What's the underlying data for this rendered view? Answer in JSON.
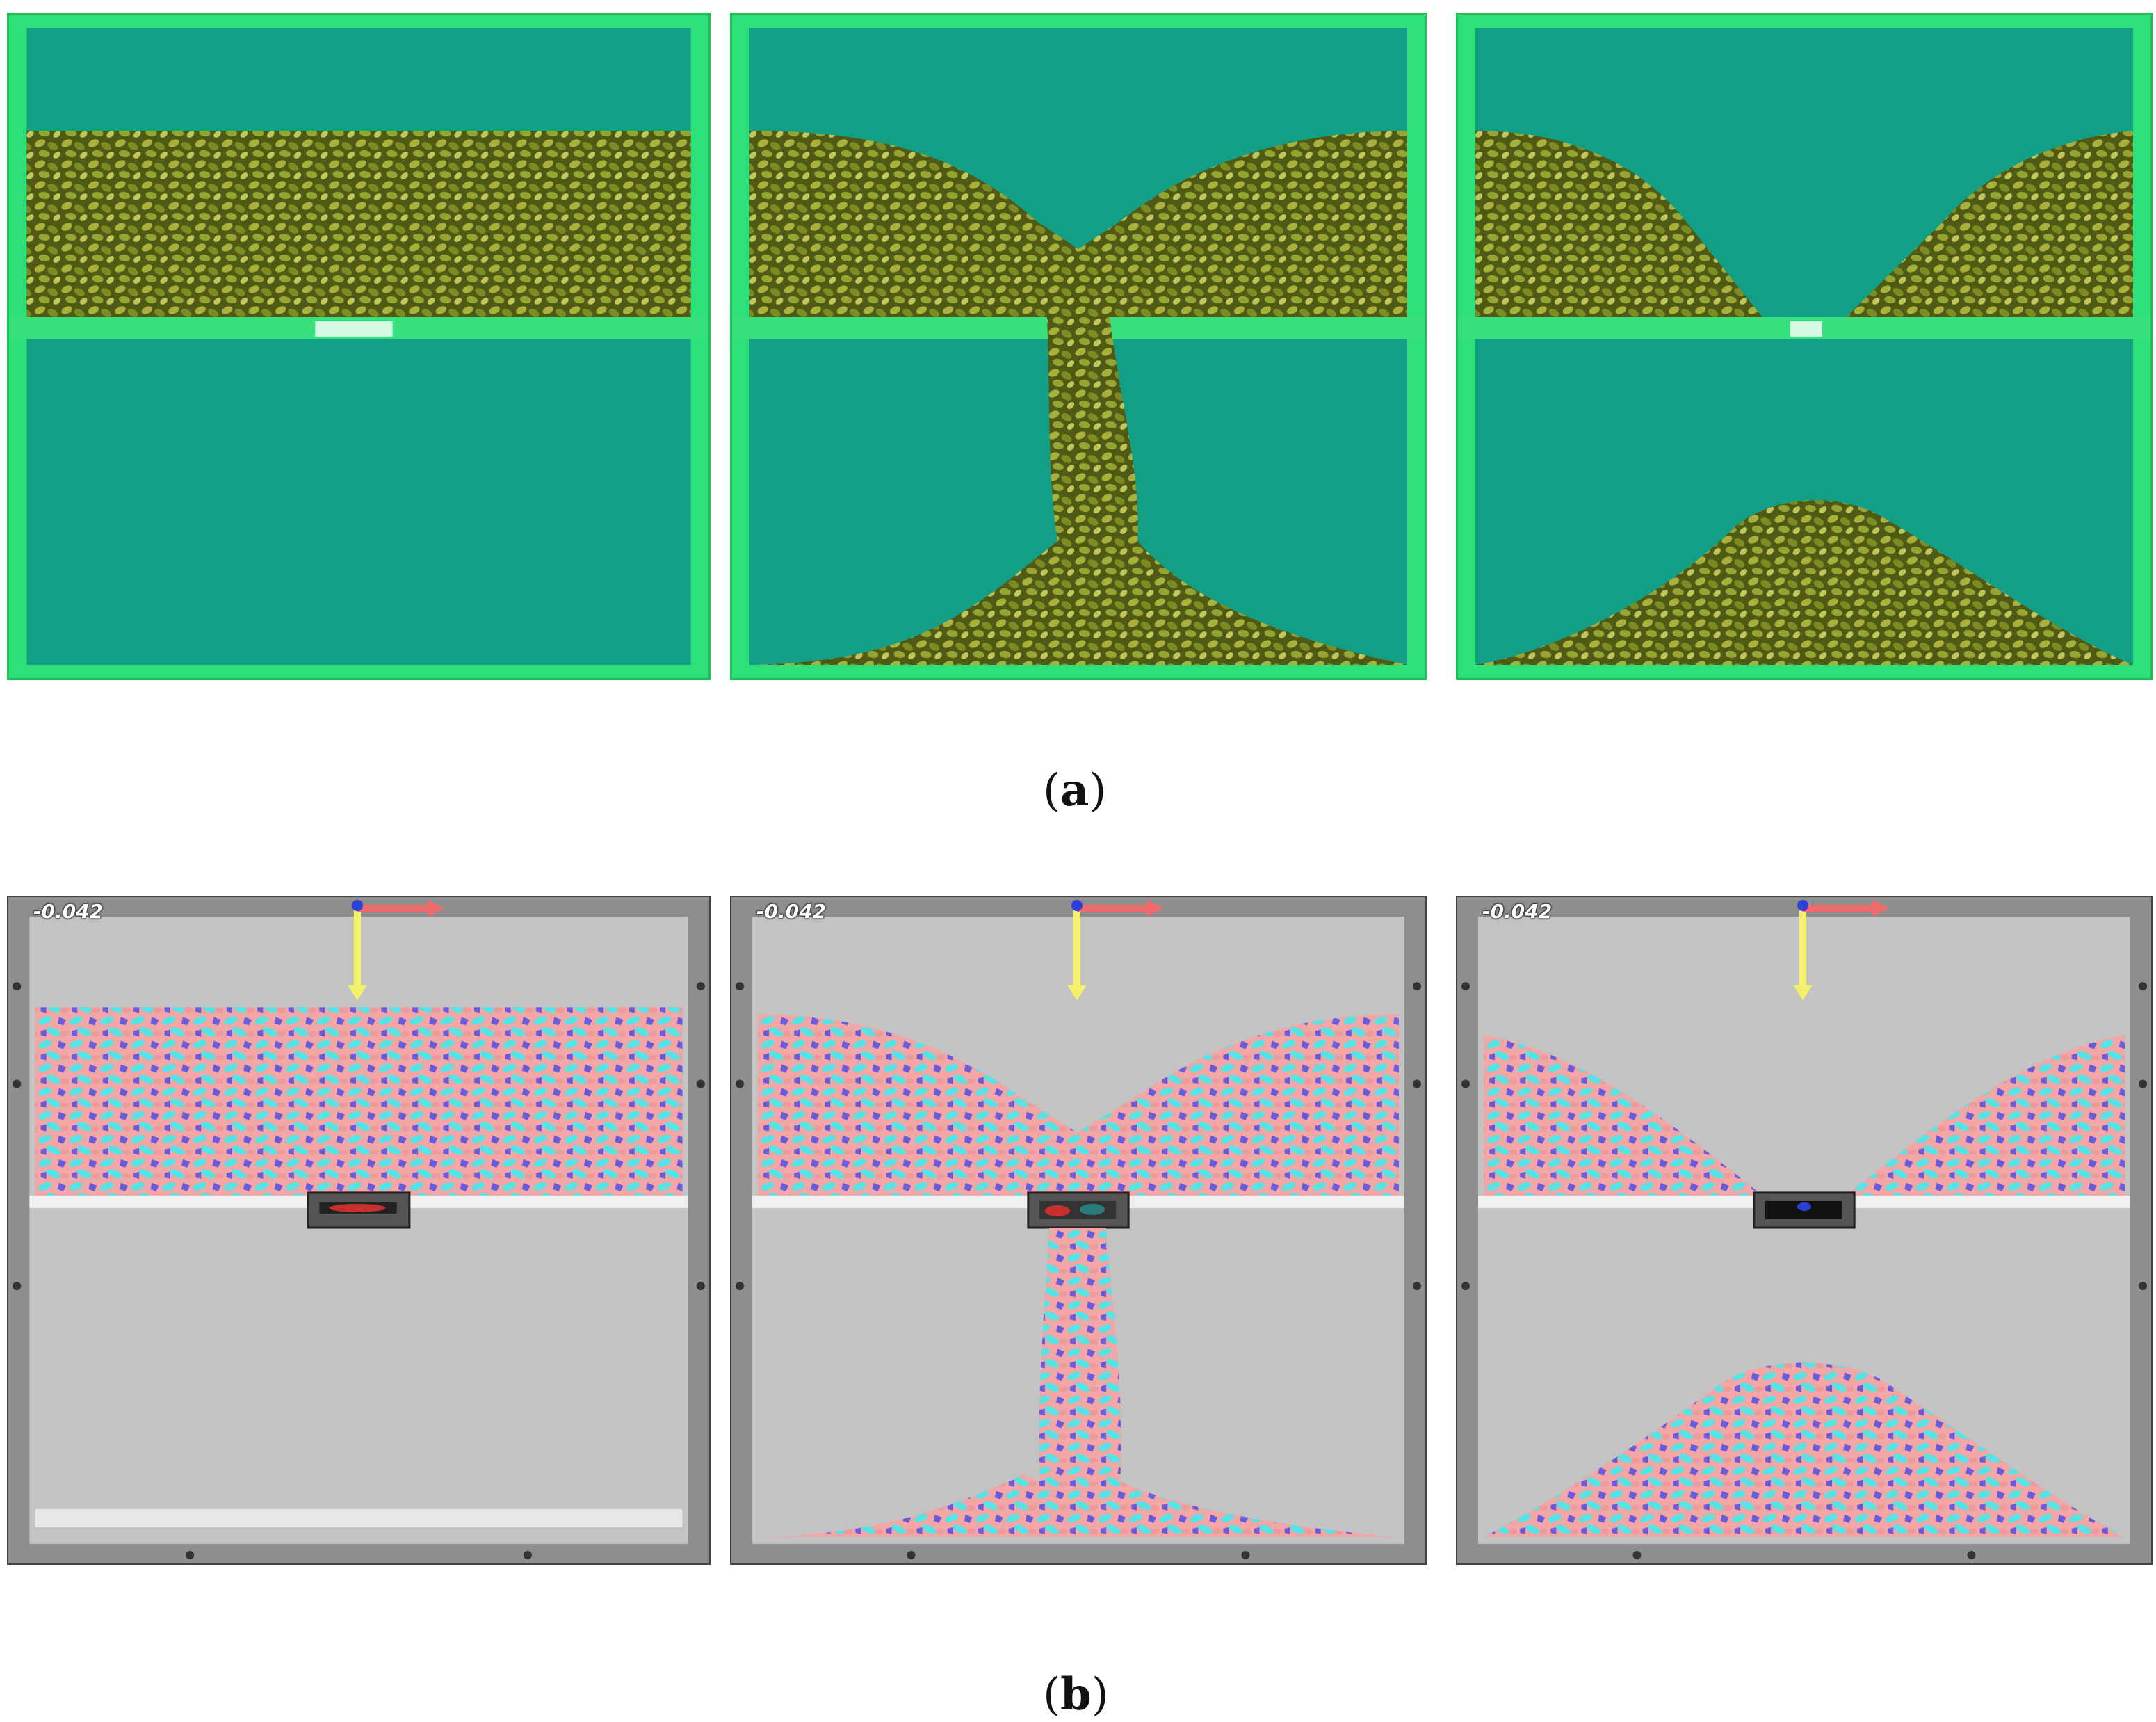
{
  "figure": {
    "subfigure_a": {
      "label_open": "(",
      "label_letter": "a",
      "label_close": ")"
    },
    "subfigure_b": {
      "label_open": "(",
      "label_letter": "b",
      "label_close": ")",
      "scale_readout": "-0.042"
    }
  },
  "colors": {
    "box_green": "#2ee07a",
    "box_water": "#139f86",
    "grain_dark": "#4f5a14",
    "grain_light": "#a9b03c",
    "sim_background": "#c3c3c3",
    "sim_frame": "#8e8e8e",
    "particle_pink": "#f2a6a6",
    "particle_cyan": "#55e3e3",
    "particle_blue": "#6a5bdc",
    "axis_yellow": "#f3f06a",
    "axis_red": "#f26b6b",
    "axis_blue": "#2c3fd6"
  }
}
